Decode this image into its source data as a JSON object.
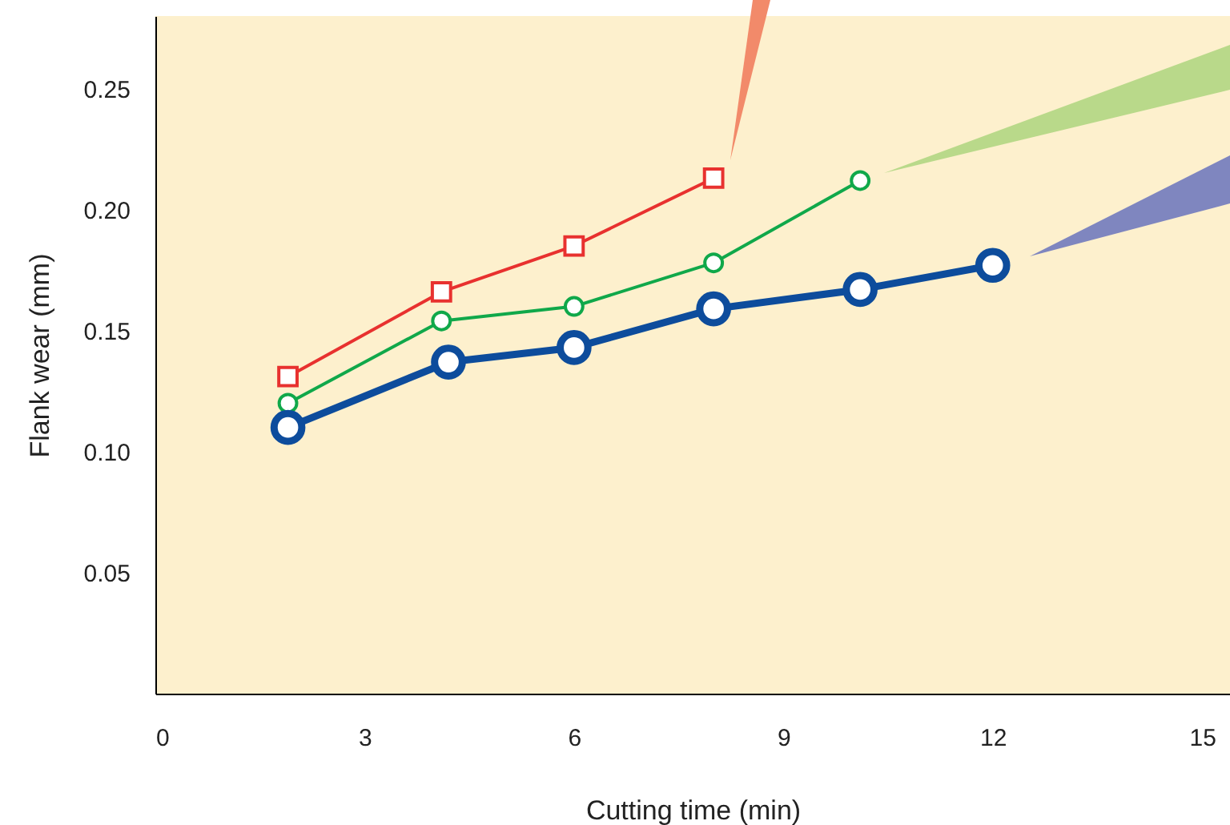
{
  "chart_data": {
    "type": "line",
    "xlabel": "Cutting time (min)",
    "ylabel": "Flank wear (mm)",
    "xlim": [
      0,
      15.4
    ],
    "xticks": [
      0,
      3,
      6,
      9,
      12,
      15
    ],
    "ylim": [
      0,
      0.28
    ],
    "yticks": [
      {
        "value": 0.05,
        "label": "0.05"
      },
      {
        "value": 0.1,
        "label": "0.10"
      },
      {
        "value": 0.15,
        "label": "0.15"
      },
      {
        "value": 0.2,
        "label": "0.20"
      },
      {
        "value": 0.25,
        "label": "0.25"
      }
    ],
    "grid": false,
    "series": [
      {
        "color": "#e8312f",
        "marker": "square",
        "x": [
          1.9,
          4.1,
          6,
          8
        ],
        "values": [
          0.131,
          0.166,
          0.185,
          0.213
        ]
      },
      {
        "color": "#10a84a",
        "marker": "circle",
        "x": [
          1.9,
          4.1,
          6,
          8,
          10.1
        ],
        "values": [
          0.12,
          0.154,
          0.16,
          0.178,
          0.212
        ]
      },
      {
        "color": "#0d4c9c",
        "marker": "circle",
        "x": [
          1.9,
          4.2,
          6,
          8,
          10.1,
          12
        ],
        "values": [
          0.11,
          0.137,
          0.143,
          0.159,
          0.167,
          0.177
        ]
      }
    ]
  }
}
